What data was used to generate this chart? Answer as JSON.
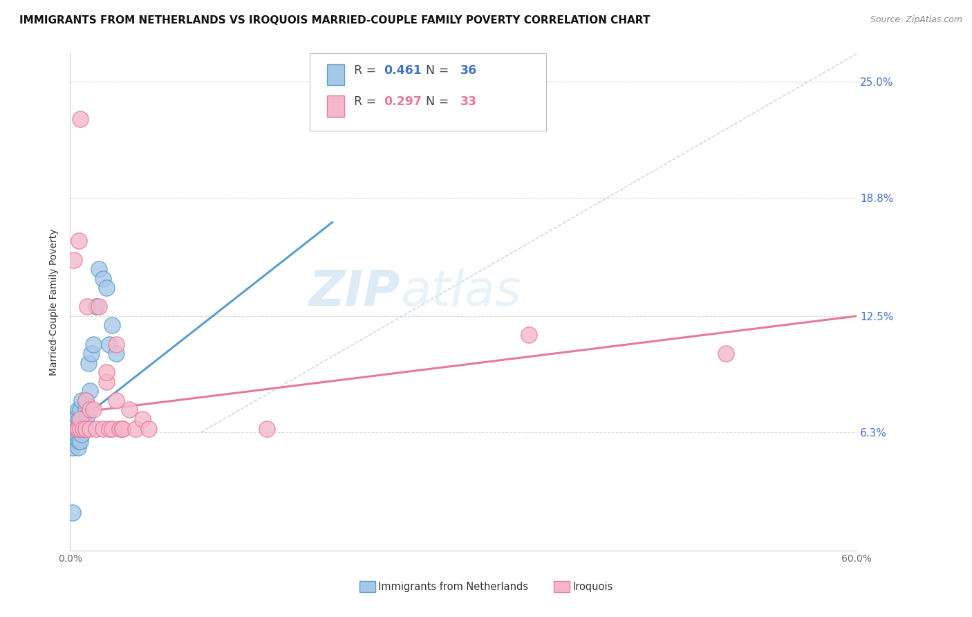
{
  "title": "IMMIGRANTS FROM NETHERLANDS VS IROQUOIS MARRIED-COUPLE FAMILY POVERTY CORRELATION CHART",
  "source": "Source: ZipAtlas.com",
  "ylabel": "Married-Couple Family Poverty",
  "xmin": 0.0,
  "xmax": 0.6,
  "ymin": 0.0,
  "ymax": 0.265,
  "yticks": [
    0.0,
    0.063,
    0.125,
    0.188,
    0.25
  ],
  "ytick_labels": [
    "",
    "6.3%",
    "12.5%",
    "18.8%",
    "25.0%"
  ],
  "xticks": [
    0.0,
    0.1,
    0.2,
    0.3,
    0.4,
    0.5,
    0.6
  ],
  "xtick_labels": [
    "0.0%",
    "",
    "",
    "",
    "",
    "",
    "60.0%"
  ],
  "blue_R": 0.461,
  "blue_N": 36,
  "pink_R": 0.297,
  "pink_N": 33,
  "blue_color": "#a8c8e8",
  "pink_color": "#f5b8cb",
  "blue_edge": "#5b9ec9",
  "pink_edge": "#e8789a",
  "blue_label": "Immigrants from Netherlands",
  "pink_label": "Iroquois",
  "blue_scatter_x": [
    0.002,
    0.003,
    0.003,
    0.004,
    0.004,
    0.005,
    0.005,
    0.006,
    0.006,
    0.006,
    0.007,
    0.007,
    0.007,
    0.008,
    0.008,
    0.008,
    0.009,
    0.009,
    0.01,
    0.01,
    0.011,
    0.012,
    0.012,
    0.013,
    0.014,
    0.015,
    0.016,
    0.018,
    0.02,
    0.022,
    0.025,
    0.028,
    0.03,
    0.032,
    0.035,
    0.002
  ],
  "blue_scatter_y": [
    0.055,
    0.065,
    0.07,
    0.06,
    0.068,
    0.072,
    0.065,
    0.055,
    0.06,
    0.075,
    0.058,
    0.065,
    0.07,
    0.058,
    0.065,
    0.075,
    0.062,
    0.08,
    0.065,
    0.07,
    0.068,
    0.075,
    0.08,
    0.072,
    0.1,
    0.085,
    0.105,
    0.11,
    0.13,
    0.15,
    0.145,
    0.14,
    0.11,
    0.12,
    0.105,
    0.02
  ],
  "pink_scatter_x": [
    0.003,
    0.005,
    0.006,
    0.007,
    0.008,
    0.008,
    0.01,
    0.012,
    0.012,
    0.013,
    0.015,
    0.015,
    0.018,
    0.02,
    0.022,
    0.025,
    0.028,
    0.028,
    0.03,
    0.032,
    0.035,
    0.035,
    0.038,
    0.04,
    0.04,
    0.045,
    0.05,
    0.055,
    0.06,
    0.15,
    0.35,
    0.5,
    0.008
  ],
  "pink_scatter_y": [
    0.155,
    0.065,
    0.065,
    0.165,
    0.065,
    0.07,
    0.065,
    0.065,
    0.08,
    0.13,
    0.065,
    0.075,
    0.075,
    0.065,
    0.13,
    0.065,
    0.09,
    0.095,
    0.065,
    0.065,
    0.08,
    0.11,
    0.065,
    0.065,
    0.065,
    0.075,
    0.065,
    0.07,
    0.065,
    0.065,
    0.115,
    0.105,
    0.23
  ],
  "blue_line_x": [
    0.005,
    0.2
  ],
  "blue_line_y": [
    0.068,
    0.175
  ],
  "pink_line_x": [
    0.0,
    0.6
  ],
  "pink_line_y": [
    0.073,
    0.125
  ],
  "diag_line_x": [
    0.1,
    0.6
  ],
  "diag_line_y": [
    0.063,
    0.265
  ],
  "watermark_zip": "ZIP",
  "watermark_atlas": "atlas",
  "title_fontsize": 11,
  "axis_label_fontsize": 10,
  "tick_fontsize": 10,
  "source_fontsize": 9
}
